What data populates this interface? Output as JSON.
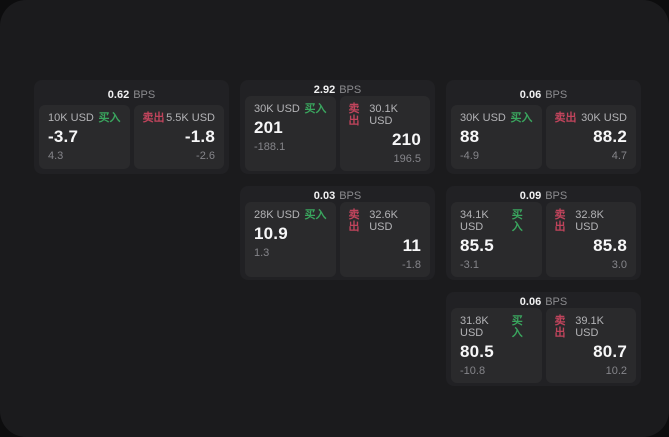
{
  "labels": {
    "bps": "BPS",
    "buy": "买入",
    "sell": "卖出"
  },
  "colors": {
    "buy": "#3aa55e",
    "sell": "#c0445c",
    "panel_bg": "#1b1b1d",
    "card_bg": "#212124",
    "pane_bg": "#2a2a2c"
  },
  "cards": [
    {
      "bps": "0.62",
      "buy": {
        "notional": "10K USD",
        "price": "-3.7",
        "delta": "4.3"
      },
      "sell": {
        "notional": "5.5K USD",
        "price": "-1.8",
        "delta": "-2.6"
      }
    },
    {
      "bps": "2.92",
      "buy": {
        "notional": "30K USD",
        "price": "201",
        "delta": "-188.1"
      },
      "sell": {
        "notional": "30.1K USD",
        "price": "210",
        "delta": "196.5"
      }
    },
    {
      "bps": "0.06",
      "buy": {
        "notional": "30K USD",
        "price": "88",
        "delta": "-4.9"
      },
      "sell": {
        "notional": "30K USD",
        "price": "88.2",
        "delta": "4.7"
      }
    },
    {
      "bps": "0.03",
      "buy": {
        "notional": "28K USD",
        "price": "10.9",
        "delta": "1.3"
      },
      "sell": {
        "notional": "32.6K USD",
        "price": "11",
        "delta": "-1.8"
      }
    },
    {
      "bps": "0.09",
      "buy": {
        "notional": "34.1K USD",
        "price": "85.5",
        "delta": "-3.1"
      },
      "sell": {
        "notional": "32.8K USD",
        "price": "85.8",
        "delta": "3.0"
      }
    },
    {
      "bps": "0.06",
      "buy": {
        "notional": "31.8K USD",
        "price": "80.5",
        "delta": "-10.8"
      },
      "sell": {
        "notional": "39.1K USD",
        "price": "80.7",
        "delta": "10.2"
      }
    }
  ]
}
